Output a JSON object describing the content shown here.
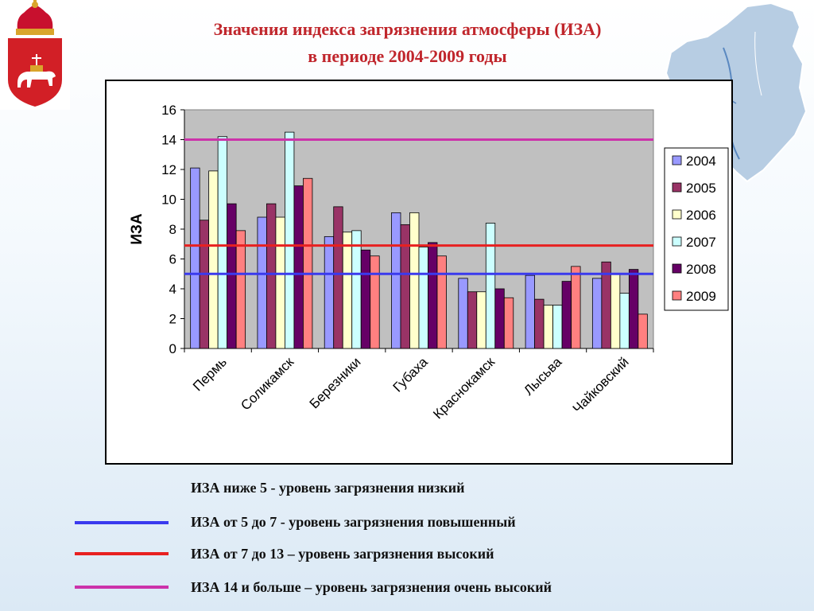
{
  "header": {
    "title_line1": "Значения индекса загрязнения атмосферы (ИЗА)",
    "title_line2": "в периоде 2004-2009 годы"
  },
  "colors": {
    "title": "#c0262c",
    "level_low": "#3a3aee",
    "level_high": "#e82020",
    "level_very_high": "#cc33aa"
  },
  "chart_data": {
    "type": "bar",
    "ylabel": "ИЗА",
    "xlabel": "",
    "ylim": [
      0,
      16
    ],
    "yticks": [
      0,
      2,
      4,
      6,
      8,
      10,
      12,
      14,
      16
    ],
    "grid": false,
    "legend_position": "right",
    "categories": [
      "Пермь",
      "Соликамск",
      "Березники",
      "Губаха",
      "Краснокамск",
      "Лысьва",
      "Чайковский"
    ],
    "series": [
      {
        "name": "2004",
        "color": "#9999ff",
        "values": [
          12.1,
          8.8,
          7.5,
          9.1,
          4.7,
          4.9,
          4.7
        ]
      },
      {
        "name": "2005",
        "color": "#993366",
        "values": [
          8.6,
          9.7,
          9.5,
          8.3,
          3.8,
          3.3,
          5.8
        ]
      },
      {
        "name": "2006",
        "color": "#ffffcc",
        "values": [
          11.9,
          8.8,
          7.8,
          9.1,
          3.8,
          2.9,
          5.0
        ]
      },
      {
        "name": "2007",
        "color": "#ccffff",
        "values": [
          14.2,
          14.5,
          7.9,
          6.8,
          8.4,
          2.9,
          3.7
        ]
      },
      {
        "name": "2008",
        "color": "#660066",
        "values": [
          9.7,
          10.9,
          6.6,
          7.1,
          4.0,
          4.5,
          5.3
        ]
      },
      {
        "name": "2009",
        "color": "#ff8080",
        "values": [
          7.9,
          11.4,
          6.2,
          6.2,
          3.4,
          5.5,
          2.3
        ]
      }
    ],
    "reference_lines": [
      {
        "value": 5,
        "color": "#3a3aee"
      },
      {
        "value": 6.9,
        "color": "#e82020"
      },
      {
        "value": 14,
        "color": "#cc33aa"
      }
    ]
  },
  "legend_items": [
    {
      "text": "ИЗА ниже 5 - уровень загрязнения низкий"
    },
    {
      "text": "ИЗА от 5 до 7 - уровень загрязнения повышенный",
      "color": "#3a3aee"
    },
    {
      "text": "ИЗА от 7 до 13 – уровень загрязнения высокий",
      "color": "#e82020"
    },
    {
      "text": "ИЗА 14 и больше – уровень загрязнения очень высокий",
      "color": "#cc33aa"
    }
  ]
}
